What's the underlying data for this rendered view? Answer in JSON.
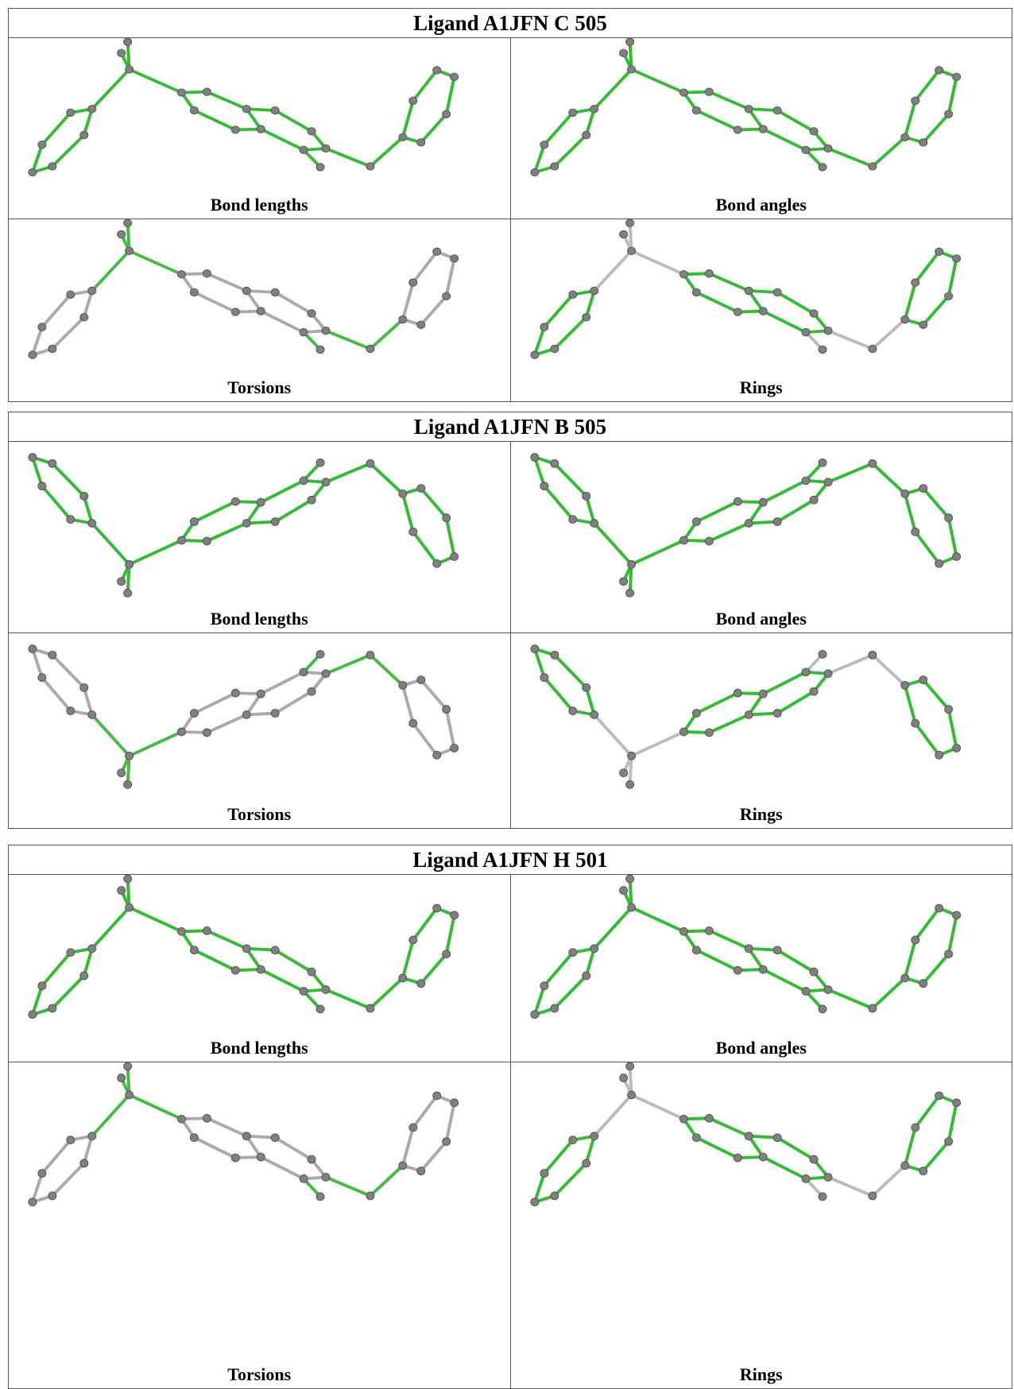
{
  "tables": [
    {
      "title": "Ligand A1JFN C 505",
      "panels": [
        "Bond lengths",
        "Bond angles",
        "Torsions",
        "Rings"
      ]
    },
    {
      "title": "Ligand A1JFN B 505",
      "panels": [
        "Bond lengths",
        "Bond angles",
        "Torsions",
        "Rings"
      ]
    },
    {
      "title": "Ligand A1JFN H 501",
      "panels": [
        "Bond lengths",
        "Bond angles",
        "Torsions",
        "Rings"
      ]
    }
  ]
}
